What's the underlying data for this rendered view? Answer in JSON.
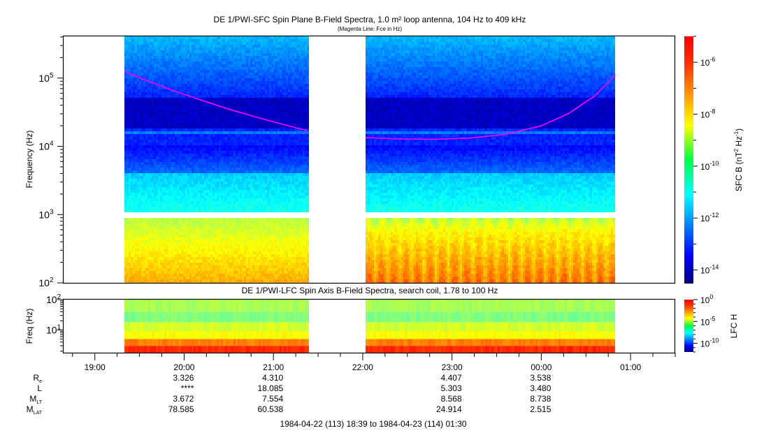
{
  "chart_data": [
    {
      "type": "heatmap",
      "title": "DE 1/PWI-SFC  Spin Plane B-Field Spectra, 1.0 m² loop antenna, 104 Hz to 409 kHz",
      "subtitle": "(Magenta Line: Fce in Hz)",
      "ylabel": "Frequency (Hz)",
      "yscale": "log",
      "ylim": [
        100,
        409000
      ],
      "yticks": [
        {
          "value": 100,
          "base": "10",
          "exp": "2"
        },
        {
          "value": 1000,
          "base": "10",
          "exp": "3"
        },
        {
          "value": 10000,
          "base": "10",
          "exp": "4"
        },
        {
          "value": 100000,
          "base": "10",
          "exp": "5"
        }
      ],
      "xlim_hours": [
        18.65,
        25.5
      ],
      "data_segments_hours": [
        [
          19.33,
          21.38
        ],
        [
          22.03,
          24.83
        ]
      ],
      "band_gap_hz": [
        900,
        1100
      ],
      "colorbar": {
        "label": "SFC B (nT² Hz⁻¹)",
        "label_parts": {
          "main": "SFC B (nT",
          "sup1": "2",
          "mid": " Hz",
          "sup2": "-1",
          "end": ")"
        },
        "scale": "log",
        "range": [
          3e-15,
          1e-05
        ],
        "ticks": [
          {
            "value": 1e-06,
            "base": "10",
            "exp": "-6"
          },
          {
            "value": 1e-08,
            "base": "10",
            "exp": "-8"
          },
          {
            "value": 1e-10,
            "base": "10",
            "exp": "-10"
          },
          {
            "value": 1e-12,
            "base": "10",
            "exp": "-12"
          },
          {
            "value": 1e-14,
            "base": "10",
            "exp": "-14"
          }
        ]
      },
      "fce_line": {
        "name": "Fce",
        "color": "#ff00ff",
        "segments": [
          {
            "hours": [
              19.33,
              19.6,
              19.9,
              20.2,
              20.5,
              20.8,
              21.1,
              21.38
            ],
            "hz": [
              125000,
              90000,
              64000,
              47000,
              35000,
              27000,
              21000,
              17000
            ]
          },
          {
            "hours": [
              22.03,
              22.4,
              22.8,
              23.2,
              23.6,
              24.0,
              24.3,
              24.6,
              24.83
            ],
            "hz": [
              13500,
              12800,
              12700,
              13200,
              15000,
              20000,
              30000,
              55000,
              110000
            ]
          }
        ]
      }
    },
    {
      "type": "heatmap",
      "title": "DE 1/PWI-LFC  Spin Axis B-Field Spectra, search coil, 1.78 to 100 Hz",
      "ylabel": "Freq (Hz)",
      "yscale": "log",
      "ylim": [
        1.78,
        100
      ],
      "yticks": [
        {
          "value": 10,
          "base": "10",
          "exp": "1"
        },
        {
          "value": 100,
          "base": "10",
          "exp": "2"
        }
      ],
      "colorbar": {
        "label": "LFC H",
        "scale": "log",
        "range": [
          1e-12,
          1
        ],
        "ticks": [
          {
            "value": 1,
            "base": "10",
            "exp": "0"
          },
          {
            "value": 1e-05,
            "base": "10",
            "exp": "-5"
          },
          {
            "value": 1e-10,
            "base": "10",
            "exp": "-10"
          }
        ]
      },
      "bands": [
        {
          "hz_range": [
            40,
            100
          ],
          "level": 3e-06
        },
        {
          "hz_range": [
            18,
            40
          ],
          "level": 1e-06
        },
        {
          "hz_range": [
            9,
            18
          ],
          "level": 1e-05
        },
        {
          "hz_range": [
            5,
            9
          ],
          "level": 3e-05
        },
        {
          "hz_range": [
            3,
            5
          ],
          "level": 0.001
        },
        {
          "hz_range": [
            1.78,
            3
          ],
          "level": 0.01
        }
      ]
    }
  ],
  "x_axis": {
    "ticks": [
      {
        "hours": 19,
        "label": "19:00"
      },
      {
        "hours": 20,
        "label": "20:00"
      },
      {
        "hours": 21,
        "label": "21:00"
      },
      {
        "hours": 22,
        "label": "22:00"
      },
      {
        "hours": 23,
        "label": "23:00"
      },
      {
        "hours": 24,
        "label": "00:00"
      },
      {
        "hours": 25,
        "label": "01:00"
      }
    ],
    "minor_step_hours": 0.25
  },
  "ephemeris": {
    "rows": [
      {
        "name": "R",
        "sub": "e",
        "values": {
          "20": "3.326",
          "21": "4.310",
          "23": "4.407",
          "24": "3.538"
        }
      },
      {
        "name": "L",
        "sub": "",
        "values": {
          "20": "****",
          "21": "18.085",
          "23": "5.303",
          "24": "3.480"
        }
      },
      {
        "name": "M",
        "sub": "LT",
        "values": {
          "20": "3.672",
          "21": "7.554",
          "23": "8.568",
          "24": "8.738"
        }
      },
      {
        "name": "M",
        "sub": "LAT",
        "values": {
          "20": "78.585",
          "21": "60.538",
          "23": "24.914",
          "24": "2.515"
        }
      }
    ]
  },
  "time_range": "1984-04-22 (113) 18:39 to 1984-04-23 (114) 01:30"
}
